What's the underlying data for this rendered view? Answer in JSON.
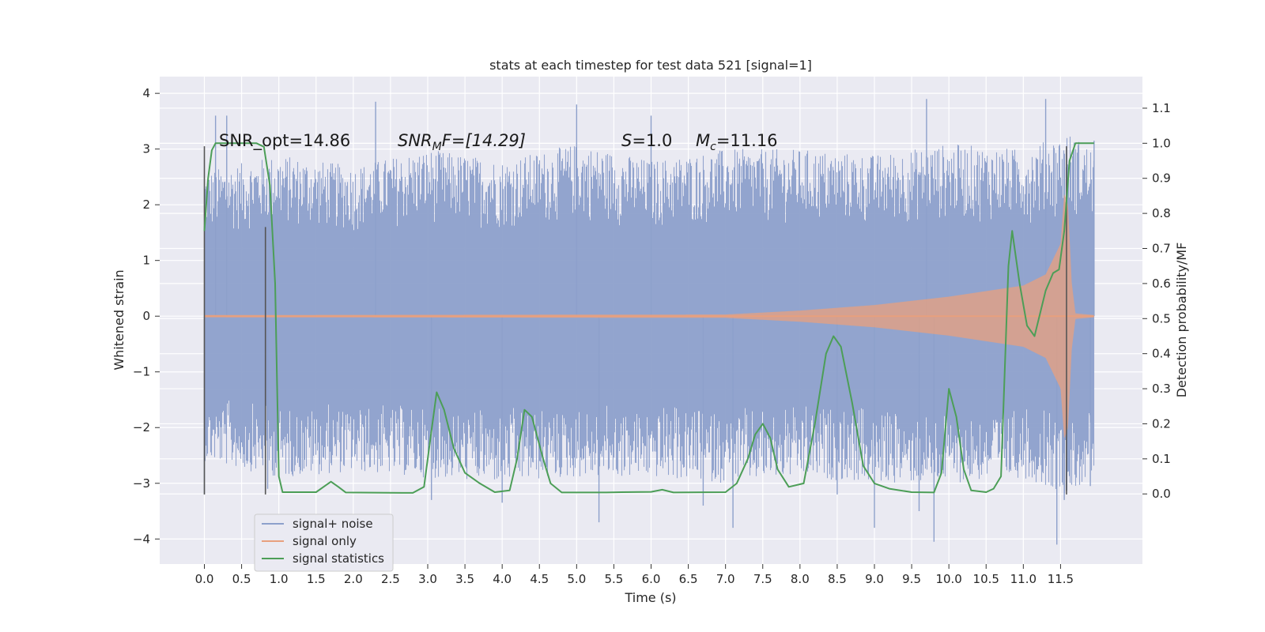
{
  "chart_data": {
    "type": "line",
    "title": "stats at each timestep for test data 521 [signal=1]",
    "xlabel": "Time (s)",
    "ylabel_left": "Whitened strain",
    "ylabel_right": "Detection probability/MF",
    "xlim": [
      -0.6,
      12.6
    ],
    "ylim_left": [
      -4.45,
      4.3
    ],
    "ylim_right": [
      -0.2,
      1.19
    ],
    "x_ticks": [
      "0.0",
      "0.5",
      "1.0",
      "1.5",
      "2.0",
      "2.5",
      "3.0",
      "3.5",
      "4.0",
      "4.5",
      "5.0",
      "5.5",
      "6.0",
      "6.5",
      "7.0",
      "7.5",
      "8.0",
      "8.5",
      "9.0",
      "9.5",
      "10.0",
      "10.5",
      "11.0",
      "11.5"
    ],
    "y_ticks_left": [
      "4",
      "3",
      "2",
      "1",
      "0",
      "−1",
      "−2",
      "−3",
      "−4"
    ],
    "y_ticks_right": [
      "1.1",
      "1.0",
      "0.9",
      "0.8",
      "0.7",
      "0.6",
      "0.5",
      "0.4",
      "0.3",
      "0.2",
      "0.1",
      "0.0"
    ],
    "grid": true,
    "legend_position": "lower-left",
    "annotations": {
      "snr_opt": "SNR_opt=14.86",
      "snr_mf_italic": "SNR",
      "snr_mf_sub": "M",
      "snr_mf_rest": "F=[14.29]",
      "s_italic": "S",
      "s_rest": "=1.0",
      "mc_italic": "M",
      "mc_sub": "c",
      "mc_rest": "=11.16"
    },
    "vertical_lines": [
      {
        "x": 0.0,
        "y_range": [
          -3.2,
          3.05
        ]
      },
      {
        "x": 0.82,
        "y_range": [
          -3.2,
          1.6
        ]
      },
      {
        "x": 11.58,
        "y_range": [
          -3.2,
          3.05
        ]
      }
    ],
    "series": [
      {
        "name": "signal+ noise",
        "color": "#8da0cb",
        "axis": "left",
        "description": "noise band",
        "envelope_upper": [
          [
            0,
            2.6
          ],
          [
            1,
            2.9
          ],
          [
            2,
            2.7
          ],
          [
            3,
            3.0
          ],
          [
            4,
            2.8
          ],
          [
            5,
            3.1
          ],
          [
            6,
            2.8
          ],
          [
            7,
            3.0
          ],
          [
            8,
            3.0
          ],
          [
            9,
            2.9
          ],
          [
            10,
            3.1
          ],
          [
            11,
            3.0
          ],
          [
            11.6,
            3.3
          ],
          [
            11.95,
            3.0
          ]
        ],
        "spikes": [
          [
            0.15,
            3.6
          ],
          [
            0.3,
            3.6
          ],
          [
            2.3,
            3.85
          ],
          [
            5.0,
            3.8
          ],
          [
            6.0,
            3.6
          ],
          [
            9.7,
            3.9
          ],
          [
            11.3,
            3.9
          ],
          [
            11.95,
            3.15
          ],
          [
            -0.0,
            -3.2
          ],
          [
            0.85,
            -3.1
          ],
          [
            4.0,
            -3.35
          ],
          [
            5.3,
            -3.7
          ],
          [
            8.5,
            -3.2
          ],
          [
            9.0,
            -3.8
          ],
          [
            9.6,
            -3.5
          ],
          [
            9.8,
            -4.05
          ],
          [
            11.45,
            -4.1
          ],
          [
            11.55,
            -3.3
          ],
          [
            11.9,
            -3.05
          ],
          [
            3.05,
            -3.3
          ],
          [
            6.7,
            -3.4
          ],
          [
            7.1,
            -3.8
          ]
        ],
        "envelope_lower": [
          [
            0,
            -2.6
          ],
          [
            1,
            -2.9
          ],
          [
            2,
            -2.8
          ],
          [
            3,
            -2.9
          ],
          [
            4,
            -3.0
          ],
          [
            5,
            -2.9
          ],
          [
            6,
            -2.9
          ],
          [
            7,
            -3.0
          ],
          [
            8,
            -2.9
          ],
          [
            9,
            -3.0
          ],
          [
            10,
            -3.0
          ],
          [
            11,
            -2.9
          ],
          [
            11.6,
            -3.2
          ],
          [
            11.95,
            -2.9
          ]
        ]
      },
      {
        "name": "signal only",
        "color": "#e8a07e",
        "axis": "left",
        "description": "chirp",
        "amplitude": [
          [
            0.0,
            0.02
          ],
          [
            7.0,
            0.03
          ],
          [
            8.0,
            0.1
          ],
          [
            9.0,
            0.2
          ],
          [
            10.0,
            0.35
          ],
          [
            10.5,
            0.45
          ],
          [
            11.0,
            0.55
          ],
          [
            11.3,
            0.75
          ],
          [
            11.5,
            1.3
          ],
          [
            11.55,
            2.2
          ],
          [
            11.6,
            2.0
          ],
          [
            11.65,
            0.6
          ],
          [
            11.7,
            0.05
          ],
          [
            11.95,
            0.02
          ]
        ]
      },
      {
        "name": "signal statistics",
        "color": "#4c9e57",
        "axis": "right",
        "points": [
          [
            0.0,
            0.75
          ],
          [
            0.05,
            0.9
          ],
          [
            0.1,
            0.98
          ],
          [
            0.15,
            1.0
          ],
          [
            0.7,
            1.0
          ],
          [
            0.8,
            0.99
          ],
          [
            0.88,
            0.88
          ],
          [
            0.95,
            0.6
          ],
          [
            1.0,
            0.05
          ],
          [
            1.05,
            0.005
          ],
          [
            1.5,
            0.005
          ],
          [
            1.6,
            0.02
          ],
          [
            1.7,
            0.035
          ],
          [
            1.8,
            0.02
          ],
          [
            1.9,
            0.004
          ],
          [
            2.8,
            0.003
          ],
          [
            2.95,
            0.02
          ],
          [
            3.05,
            0.18
          ],
          [
            3.12,
            0.29
          ],
          [
            3.22,
            0.24
          ],
          [
            3.35,
            0.13
          ],
          [
            3.5,
            0.06
          ],
          [
            3.7,
            0.03
          ],
          [
            3.9,
            0.005
          ],
          [
            4.1,
            0.01
          ],
          [
            4.2,
            0.1
          ],
          [
            4.3,
            0.24
          ],
          [
            4.4,
            0.22
          ],
          [
            4.55,
            0.1
          ],
          [
            4.65,
            0.03
          ],
          [
            4.8,
            0.004
          ],
          [
            5.4,
            0.004
          ],
          [
            5.6,
            0.005
          ],
          [
            6.0,
            0.006
          ],
          [
            6.15,
            0.012
          ],
          [
            6.3,
            0.004
          ],
          [
            7.0,
            0.005
          ],
          [
            7.15,
            0.03
          ],
          [
            7.3,
            0.1
          ],
          [
            7.4,
            0.17
          ],
          [
            7.5,
            0.2
          ],
          [
            7.6,
            0.16
          ],
          [
            7.7,
            0.07
          ],
          [
            7.85,
            0.02
          ],
          [
            8.05,
            0.03
          ],
          [
            8.2,
            0.2
          ],
          [
            8.35,
            0.4
          ],
          [
            8.45,
            0.45
          ],
          [
            8.55,
            0.42
          ],
          [
            8.7,
            0.26
          ],
          [
            8.85,
            0.08
          ],
          [
            9.0,
            0.03
          ],
          [
            9.2,
            0.015
          ],
          [
            9.5,
            0.005
          ],
          [
            9.8,
            0.004
          ],
          [
            9.9,
            0.06
          ],
          [
            10.0,
            0.3
          ],
          [
            10.1,
            0.22
          ],
          [
            10.2,
            0.07
          ],
          [
            10.3,
            0.01
          ],
          [
            10.5,
            0.005
          ],
          [
            10.6,
            0.015
          ],
          [
            10.7,
            0.05
          ],
          [
            10.8,
            0.65
          ],
          [
            10.85,
            0.75
          ],
          [
            10.95,
            0.6
          ],
          [
            11.05,
            0.48
          ],
          [
            11.15,
            0.45
          ],
          [
            11.3,
            0.58
          ],
          [
            11.4,
            0.63
          ],
          [
            11.48,
            0.64
          ],
          [
            11.55,
            0.75
          ],
          [
            11.62,
            0.95
          ],
          [
            11.7,
            1.0
          ],
          [
            11.95,
            1.0
          ]
        ]
      }
    ]
  }
}
